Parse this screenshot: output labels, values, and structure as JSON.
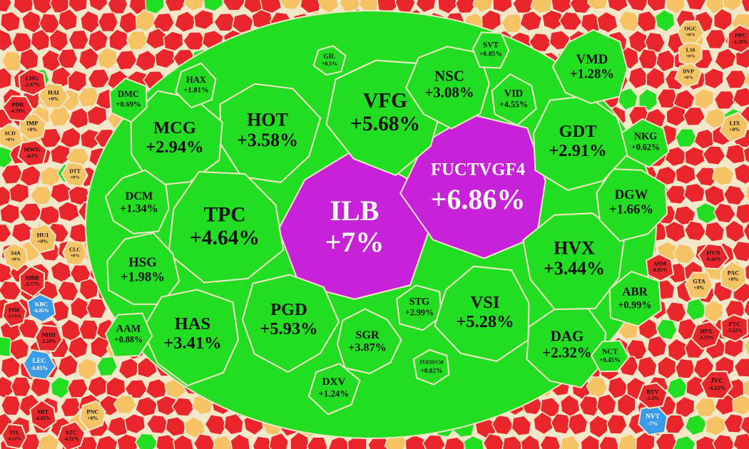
{
  "chart_data": {
    "type": "treemap",
    "categories": [
      "ILB",
      "FUCTVGF4",
      "VFG",
      "HOT",
      "MCG",
      "TPC",
      "HSG",
      "DCM",
      "HAS",
      "PGD",
      "SGR",
      "STG",
      "VSI",
      "DAG",
      "HVX",
      "DGW",
      "GDT",
      "NKG",
      "VMD",
      "NSC",
      "VID",
      "SVT",
      "HAX",
      "DMC",
      "AAM",
      "DXV",
      "ABR",
      "NCT",
      "GIL",
      "FUESSV50",
      "HAI",
      "IMP",
      "SCD",
      "DTT",
      "HU1",
      "S4A",
      "CLC",
      "PNC",
      "PAC",
      "GTA",
      "LIX",
      "L10",
      "OGC",
      "DVP",
      "LHG",
      "PDR",
      "MWG",
      "KBC",
      "LEC",
      "NVT",
      "SBT",
      "TIX",
      "PHR",
      "MBB",
      "NHH",
      "SZC",
      "PPC",
      "JVC",
      "HPX",
      "PTC",
      "HVN",
      "BTV",
      "ASM"
    ],
    "values": [
      7,
      6.86,
      5.68,
      3.58,
      2.94,
      4.64,
      1.98,
      1.34,
      3.41,
      5.93,
      3.87,
      2.99,
      5.28,
      2.32,
      3.44,
      1.66,
      2.91,
      0.62,
      1.28,
      3.08,
      4.55,
      0.85,
      1.81,
      0.69,
      0.88,
      1.24,
      0.99,
      0.45,
      0.5,
      0.82,
      0,
      0,
      0,
      0,
      0,
      0,
      0,
      0,
      0,
      0,
      0,
      0,
      0,
      0,
      -2.97,
      -4.79,
      -4.2,
      -6.85,
      -6.85,
      -7,
      -4.83,
      -0.32,
      -2.73,
      -3.77,
      -2.24,
      -4.21,
      -1.59,
      -4.12,
      -3.73,
      -3.52,
      -0.44,
      -1.2,
      -0.95
    ],
    "value_labels": [
      "+7%",
      "+6.86%",
      "+5.68%",
      "+3.58%",
      "+2.94%",
      "+4.64%",
      "+1.98%",
      "+1.34%",
      "+3.41%",
      "+5.93%",
      "+3.87%",
      "+2.99%",
      "+5.28%",
      "+2.32%",
      "+3.44%",
      "+1.66%",
      "+2.91%",
      "+0.62%",
      "+1.28%",
      "+3.08%",
      "+4.55%",
      "+0.85%",
      "+1.81%",
      "+0.69%",
      "+0.88%",
      "+1.24%",
      "+0.99%",
      "+0.45%",
      "+0.5%",
      "+0.82%",
      "+0%",
      "+0%",
      "+0%",
      "+0%",
      "+0%",
      "+0%",
      "+0%",
      "+0%",
      "+0%",
      "+0%",
      "+0%",
      "+0%",
      "+0%",
      "+0%",
      "-2.97%",
      "-4.79%",
      "-4.2%",
      "-6.85%",
      "-6.85%",
      "-7%",
      "-4.83%",
      "-0.32%",
      "-2.73%",
      "-3.77%",
      "-2.24%",
      "-4.21%",
      "-1.59%",
      "-4.12%",
      "-3.73%",
      "-3.52%",
      "-0.44%",
      "-1.2%",
      "-0.95%"
    ],
    "colors": {
      "ceiling": "#c722d8",
      "up": "#22dd22",
      "flat": "#f5c264",
      "down": "#e8262b",
      "floor": "#3a9be8"
    }
  }
}
